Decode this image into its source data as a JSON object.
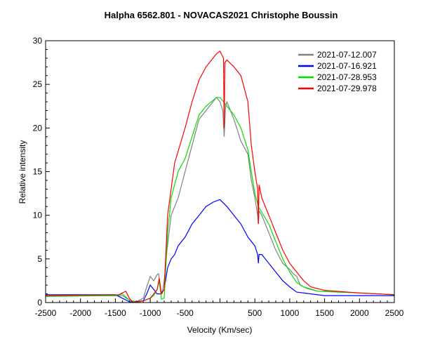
{
  "chart_data": {
    "type": "line",
    "title": "Halpha 6562.801 - NOVACAS2021   Christophe Boussin",
    "xlabel": "Velocity (Km/sec)",
    "ylabel": "Relative intensity",
    "xlim": [
      -2500,
      2500
    ],
    "ylim": [
      0,
      30
    ],
    "xticks": [
      -2500,
      -2000,
      -1500,
      -1000,
      -500,
      500,
      1000,
      1500,
      2000,
      2500
    ],
    "yticks": [
      0,
      5,
      10,
      15,
      20,
      25,
      30
    ],
    "grid": false,
    "legend_position": "top-right",
    "series": [
      {
        "name": "2021-07-12.007",
        "color": "#808080",
        "x": [
          -2500,
          -1500,
          -1400,
          -1300,
          -1200,
          -1100,
          -1050,
          -1000,
          -950,
          -900,
          -880,
          -850,
          -830,
          -800,
          -760,
          -700,
          -650,
          -600,
          -500,
          -400,
          -300,
          -150,
          -50,
          0,
          40,
          60,
          80,
          100,
          200,
          300,
          400,
          450,
          500,
          540,
          550,
          560,
          600,
          700,
          800,
          900,
          1000,
          1050,
          1100,
          1150,
          1250,
          1400,
          1700,
          2000,
          2500
        ],
        "y": [
          0.8,
          0.8,
          0.8,
          0.3,
          0.1,
          0.5,
          1.8,
          3.0,
          2.5,
          3.2,
          3.3,
          1.5,
          1.0,
          2.5,
          6,
          10,
          11,
          12,
          15,
          18,
          21,
          22.5,
          23.5,
          23,
          22,
          19,
          22.5,
          23,
          21,
          18.5,
          17,
          14,
          12,
          10,
          9,
          10.5,
          10,
          8,
          6,
          4.5,
          3.8,
          3.3,
          3,
          2,
          1.6,
          1.3,
          1.2,
          1.1,
          0.9
        ]
      },
      {
        "name": "2021-07-16.921",
        "color": "#0000ff",
        "x": [
          -2500,
          -1500,
          -1400,
          -1300,
          -1200,
          -1100,
          -1050,
          -1000,
          -950,
          -900,
          -850,
          -800,
          -750,
          -700,
          -650,
          -600,
          -500,
          -400,
          -300,
          -200,
          -100,
          0,
          100,
          200,
          300,
          400,
          500,
          540,
          550,
          560,
          600,
          700,
          800,
          900,
          1000,
          1100,
          1300,
          1500,
          2000,
          2500
        ],
        "y": [
          0.9,
          0.9,
          0.5,
          0.1,
          0.1,
          0.2,
          1.0,
          2.0,
          1.5,
          1.0,
          1.0,
          1.5,
          4,
          5,
          5.5,
          6.5,
          7.5,
          9,
          10,
          11,
          11.5,
          11.8,
          11,
          10,
          9,
          7.5,
          6.5,
          5.5,
          4.5,
          5.5,
          5.5,
          4.5,
          3.5,
          2.5,
          1.8,
          1.2,
          1.0,
          0.8,
          0.8,
          0.8
        ]
      },
      {
        "name": "2021-07-28.953",
        "color": "#00e000",
        "x": [
          -2500,
          -1500,
          -1400,
          -1300,
          -1200,
          -1100,
          -1000,
          -950,
          -900,
          -870,
          -840,
          -800,
          -750,
          -700,
          -600,
          -500,
          -400,
          -300,
          -200,
          -50,
          0,
          100,
          200,
          300,
          400,
          450,
          500,
          550,
          700,
          800,
          900,
          1000,
          1100,
          1200,
          1400,
          2000,
          2500
        ],
        "y": [
          0.7,
          0.8,
          1.0,
          0.3,
          0.0,
          0.2,
          0.5,
          0.8,
          1.5,
          2.5,
          0.4,
          0.5,
          8,
          12,
          15,
          16.5,
          19,
          21.5,
          22.5,
          23.5,
          23.5,
          22.5,
          21.5,
          20,
          17.5,
          15,
          12.5,
          11,
          9,
          7,
          5,
          3.5,
          2.3,
          1.8,
          1.3,
          1.1,
          0.9
        ]
      },
      {
        "name": "2021-07-29.978",
        "color": "#ff0000",
        "x": [
          -2500,
          -1450,
          -1350,
          -1300,
          -1250,
          -1100,
          -1000,
          -950,
          -900,
          -870,
          -840,
          -800,
          -750,
          -700,
          -650,
          -500,
          -400,
          -300,
          -200,
          -50,
          0,
          50,
          60,
          70,
          100,
          200,
          300,
          400,
          450,
          500,
          540,
          550,
          560,
          600,
          700,
          800,
          900,
          1000,
          1100,
          1200,
          1300,
          1500,
          2000,
          2500
        ],
        "y": [
          0.8,
          0.9,
          1.3,
          0.5,
          0.0,
          0.2,
          0.5,
          1.0,
          1.5,
          2.8,
          1.0,
          1.5,
          10,
          13,
          16,
          20,
          23,
          25.5,
          27,
          28.5,
          28.8,
          28,
          20,
          27.5,
          27.8,
          27,
          26,
          23,
          18,
          15,
          13,
          9,
          13.5,
          12,
          10,
          8,
          6,
          4.5,
          3.5,
          2.5,
          1.8,
          1.4,
          1.1,
          0.9
        ]
      }
    ]
  }
}
